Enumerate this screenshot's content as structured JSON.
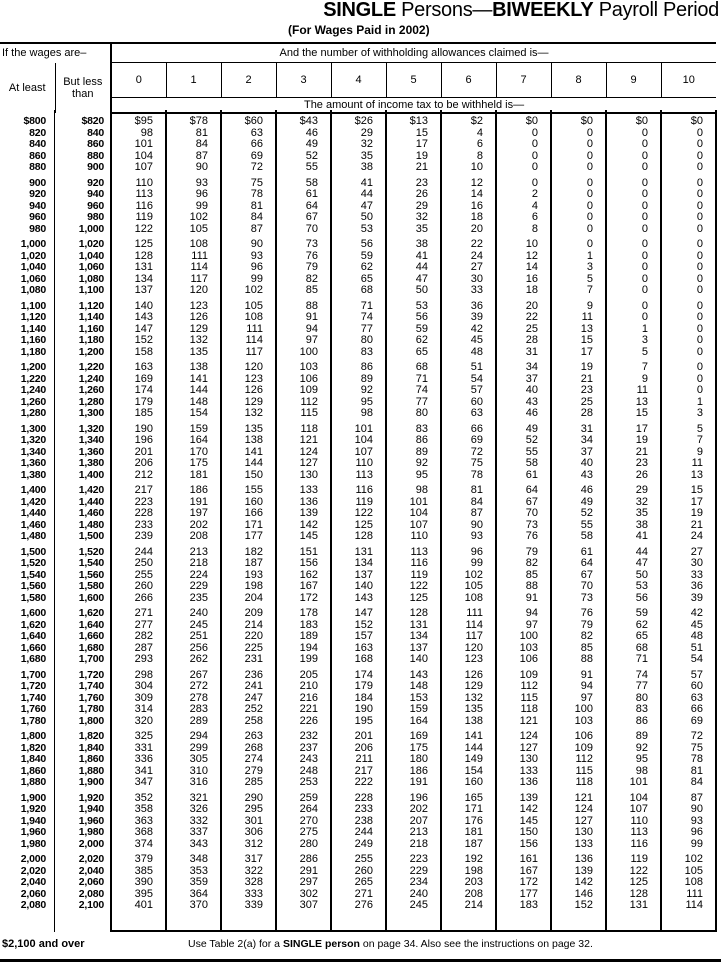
{
  "title": {
    "part1": "SINGLE",
    "part2": " Persons—",
    "part3": "BIWEEKLY",
    "part4": " Payroll Period"
  },
  "subtitle": "(For Wages Paid in 2002)",
  "header": {
    "wages_label": "If the wages are–",
    "allowances_label": "And the number of withholding allowances claimed is—",
    "at_least": "At least",
    "but_less_than": "But less than",
    "allowances": [
      "0",
      "1",
      "2",
      "3",
      "4",
      "5",
      "6",
      "7",
      "8",
      "9",
      "10"
    ],
    "amount_label": "The amount of income tax to be withheld is—"
  },
  "rows": [
    [
      "$800",
      "$820",
      "$95",
      "$78",
      "$60",
      "$43",
      "$26",
      "$13",
      "$2",
      "$0",
      "$0",
      "$0",
      "$0"
    ],
    [
      "820",
      "840",
      "98",
      "81",
      "63",
      "46",
      "29",
      "15",
      "4",
      "0",
      "0",
      "0",
      "0"
    ],
    [
      "840",
      "860",
      "101",
      "84",
      "66",
      "49",
      "32",
      "17",
      "6",
      "0",
      "0",
      "0",
      "0"
    ],
    [
      "860",
      "880",
      "104",
      "87",
      "69",
      "52",
      "35",
      "19",
      "8",
      "0",
      "0",
      "0",
      "0"
    ],
    [
      "880",
      "900",
      "107",
      "90",
      "72",
      "55",
      "38",
      "21",
      "10",
      "0",
      "0",
      "0",
      "0"
    ],
    [
      "900",
      "920",
      "110",
      "93",
      "75",
      "58",
      "41",
      "23",
      "12",
      "0",
      "0",
      "0",
      "0"
    ],
    [
      "920",
      "940",
      "113",
      "96",
      "78",
      "61",
      "44",
      "26",
      "14",
      "2",
      "0",
      "0",
      "0"
    ],
    [
      "940",
      "960",
      "116",
      "99",
      "81",
      "64",
      "47",
      "29",
      "16",
      "4",
      "0",
      "0",
      "0"
    ],
    [
      "960",
      "980",
      "119",
      "102",
      "84",
      "67",
      "50",
      "32",
      "18",
      "6",
      "0",
      "0",
      "0"
    ],
    [
      "980",
      "1,000",
      "122",
      "105",
      "87",
      "70",
      "53",
      "35",
      "20",
      "8",
      "0",
      "0",
      "0"
    ],
    [
      "1,000",
      "1,020",
      "125",
      "108",
      "90",
      "73",
      "56",
      "38",
      "22",
      "10",
      "0",
      "0",
      "0"
    ],
    [
      "1,020",
      "1,040",
      "128",
      "111",
      "93",
      "76",
      "59",
      "41",
      "24",
      "12",
      "1",
      "0",
      "0"
    ],
    [
      "1,040",
      "1,060",
      "131",
      "114",
      "96",
      "79",
      "62",
      "44",
      "27",
      "14",
      "3",
      "0",
      "0"
    ],
    [
      "1,060",
      "1,080",
      "134",
      "117",
      "99",
      "82",
      "65",
      "47",
      "30",
      "16",
      "5",
      "0",
      "0"
    ],
    [
      "1,080",
      "1,100",
      "137",
      "120",
      "102",
      "85",
      "68",
      "50",
      "33",
      "18",
      "7",
      "0",
      "0"
    ],
    [
      "1,100",
      "1,120",
      "140",
      "123",
      "105",
      "88",
      "71",
      "53",
      "36",
      "20",
      "9",
      "0",
      "0"
    ],
    [
      "1,120",
      "1,140",
      "143",
      "126",
      "108",
      "91",
      "74",
      "56",
      "39",
      "22",
      "11",
      "0",
      "0"
    ],
    [
      "1,140",
      "1,160",
      "147",
      "129",
      "111",
      "94",
      "77",
      "59",
      "42",
      "25",
      "13",
      "1",
      "0"
    ],
    [
      "1,160",
      "1,180",
      "152",
      "132",
      "114",
      "97",
      "80",
      "62",
      "45",
      "28",
      "15",
      "3",
      "0"
    ],
    [
      "1,180",
      "1,200",
      "158",
      "135",
      "117",
      "100",
      "83",
      "65",
      "48",
      "31",
      "17",
      "5",
      "0"
    ],
    [
      "1,200",
      "1,220",
      "163",
      "138",
      "120",
      "103",
      "86",
      "68",
      "51",
      "34",
      "19",
      "7",
      "0"
    ],
    [
      "1,220",
      "1,240",
      "169",
      "141",
      "123",
      "106",
      "89",
      "71",
      "54",
      "37",
      "21",
      "9",
      "0"
    ],
    [
      "1,240",
      "1,260",
      "174",
      "144",
      "126",
      "109",
      "92",
      "74",
      "57",
      "40",
      "23",
      "11",
      "0"
    ],
    [
      "1,260",
      "1,280",
      "179",
      "148",
      "129",
      "112",
      "95",
      "77",
      "60",
      "43",
      "25",
      "13",
      "1"
    ],
    [
      "1,280",
      "1,300",
      "185",
      "154",
      "132",
      "115",
      "98",
      "80",
      "63",
      "46",
      "28",
      "15",
      "3"
    ],
    [
      "1,300",
      "1,320",
      "190",
      "159",
      "135",
      "118",
      "101",
      "83",
      "66",
      "49",
      "31",
      "17",
      "5"
    ],
    [
      "1,320",
      "1,340",
      "196",
      "164",
      "138",
      "121",
      "104",
      "86",
      "69",
      "52",
      "34",
      "19",
      "7"
    ],
    [
      "1,340",
      "1,360",
      "201",
      "170",
      "141",
      "124",
      "107",
      "89",
      "72",
      "55",
      "37",
      "21",
      "9"
    ],
    [
      "1,360",
      "1,380",
      "206",
      "175",
      "144",
      "127",
      "110",
      "92",
      "75",
      "58",
      "40",
      "23",
      "11"
    ],
    [
      "1,380",
      "1,400",
      "212",
      "181",
      "150",
      "130",
      "113",
      "95",
      "78",
      "61",
      "43",
      "26",
      "13"
    ],
    [
      "1,400",
      "1,420",
      "217",
      "186",
      "155",
      "133",
      "116",
      "98",
      "81",
      "64",
      "46",
      "29",
      "15"
    ],
    [
      "1,420",
      "1,440",
      "223",
      "191",
      "160",
      "136",
      "119",
      "101",
      "84",
      "67",
      "49",
      "32",
      "17"
    ],
    [
      "1,440",
      "1,460",
      "228",
      "197",
      "166",
      "139",
      "122",
      "104",
      "87",
      "70",
      "52",
      "35",
      "19"
    ],
    [
      "1,460",
      "1,480",
      "233",
      "202",
      "171",
      "142",
      "125",
      "107",
      "90",
      "73",
      "55",
      "38",
      "21"
    ],
    [
      "1,480",
      "1,500",
      "239",
      "208",
      "177",
      "145",
      "128",
      "110",
      "93",
      "76",
      "58",
      "41",
      "24"
    ],
    [
      "1,500",
      "1,520",
      "244",
      "213",
      "182",
      "151",
      "131",
      "113",
      "96",
      "79",
      "61",
      "44",
      "27"
    ],
    [
      "1,520",
      "1,540",
      "250",
      "218",
      "187",
      "156",
      "134",
      "116",
      "99",
      "82",
      "64",
      "47",
      "30"
    ],
    [
      "1,540",
      "1,560",
      "255",
      "224",
      "193",
      "162",
      "137",
      "119",
      "102",
      "85",
      "67",
      "50",
      "33"
    ],
    [
      "1,560",
      "1,580",
      "260",
      "229",
      "198",
      "167",
      "140",
      "122",
      "105",
      "88",
      "70",
      "53",
      "36"
    ],
    [
      "1,580",
      "1,600",
      "266",
      "235",
      "204",
      "172",
      "143",
      "125",
      "108",
      "91",
      "73",
      "56",
      "39"
    ],
    [
      "1,600",
      "1,620",
      "271",
      "240",
      "209",
      "178",
      "147",
      "128",
      "111",
      "94",
      "76",
      "59",
      "42"
    ],
    [
      "1,620",
      "1,640",
      "277",
      "245",
      "214",
      "183",
      "152",
      "131",
      "114",
      "97",
      "79",
      "62",
      "45"
    ],
    [
      "1,640",
      "1,660",
      "282",
      "251",
      "220",
      "189",
      "157",
      "134",
      "117",
      "100",
      "82",
      "65",
      "48"
    ],
    [
      "1,660",
      "1,680",
      "287",
      "256",
      "225",
      "194",
      "163",
      "137",
      "120",
      "103",
      "85",
      "68",
      "51"
    ],
    [
      "1,680",
      "1,700",
      "293",
      "262",
      "231",
      "199",
      "168",
      "140",
      "123",
      "106",
      "88",
      "71",
      "54"
    ],
    [
      "1,700",
      "1,720",
      "298",
      "267",
      "236",
      "205",
      "174",
      "143",
      "126",
      "109",
      "91",
      "74",
      "57"
    ],
    [
      "1,720",
      "1,740",
      "304",
      "272",
      "241",
      "210",
      "179",
      "148",
      "129",
      "112",
      "94",
      "77",
      "60"
    ],
    [
      "1,740",
      "1,760",
      "309",
      "278",
      "247",
      "216",
      "184",
      "153",
      "132",
      "115",
      "97",
      "80",
      "63"
    ],
    [
      "1,760",
      "1,780",
      "314",
      "283",
      "252",
      "221",
      "190",
      "159",
      "135",
      "118",
      "100",
      "83",
      "66"
    ],
    [
      "1,780",
      "1,800",
      "320",
      "289",
      "258",
      "226",
      "195",
      "164",
      "138",
      "121",
      "103",
      "86",
      "69"
    ],
    [
      "1,800",
      "1,820",
      "325",
      "294",
      "263",
      "232",
      "201",
      "169",
      "141",
      "124",
      "106",
      "89",
      "72"
    ],
    [
      "1,820",
      "1,840",
      "331",
      "299",
      "268",
      "237",
      "206",
      "175",
      "144",
      "127",
      "109",
      "92",
      "75"
    ],
    [
      "1,840",
      "1,860",
      "336",
      "305",
      "274",
      "243",
      "211",
      "180",
      "149",
      "130",
      "112",
      "95",
      "78"
    ],
    [
      "1,860",
      "1,880",
      "341",
      "310",
      "279",
      "248",
      "217",
      "186",
      "154",
      "133",
      "115",
      "98",
      "81"
    ],
    [
      "1,880",
      "1,900",
      "347",
      "316",
      "285",
      "253",
      "222",
      "191",
      "160",
      "136",
      "118",
      "101",
      "84"
    ],
    [
      "1,900",
      "1,920",
      "352",
      "321",
      "290",
      "259",
      "228",
      "196",
      "165",
      "139",
      "121",
      "104",
      "87"
    ],
    [
      "1,920",
      "1,940",
      "358",
      "326",
      "295",
      "264",
      "233",
      "202",
      "171",
      "142",
      "124",
      "107",
      "90"
    ],
    [
      "1,940",
      "1,960",
      "363",
      "332",
      "301",
      "270",
      "238",
      "207",
      "176",
      "145",
      "127",
      "110",
      "93"
    ],
    [
      "1,960",
      "1,980",
      "368",
      "337",
      "306",
      "275",
      "244",
      "213",
      "181",
      "150",
      "130",
      "113",
      "96"
    ],
    [
      "1,980",
      "2,000",
      "374",
      "343",
      "312",
      "280",
      "249",
      "218",
      "187",
      "156",
      "133",
      "116",
      "99"
    ],
    [
      "2,000",
      "2,020",
      "379",
      "348",
      "317",
      "286",
      "255",
      "223",
      "192",
      "161",
      "136",
      "119",
      "102"
    ],
    [
      "2,020",
      "2,040",
      "385",
      "353",
      "322",
      "291",
      "260",
      "229",
      "198",
      "167",
      "139",
      "122",
      "105"
    ],
    [
      "2,040",
      "2,060",
      "390",
      "359",
      "328",
      "297",
      "265",
      "234",
      "203",
      "172",
      "142",
      "125",
      "108"
    ],
    [
      "2,060",
      "2,080",
      "395",
      "364",
      "333",
      "302",
      "271",
      "240",
      "208",
      "177",
      "146",
      "128",
      "111"
    ],
    [
      "2,080",
      "2,100",
      "401",
      "370",
      "339",
      "307",
      "276",
      "245",
      "214",
      "183",
      "152",
      "131",
      "114"
    ]
  ],
  "footer": {
    "over_label": "$2,100 and over",
    "note_pre": "Use Table 2(a) for a ",
    "note_bold": "SINGLE person",
    "note_post": " on page 34. Also see the instructions on page 32."
  }
}
